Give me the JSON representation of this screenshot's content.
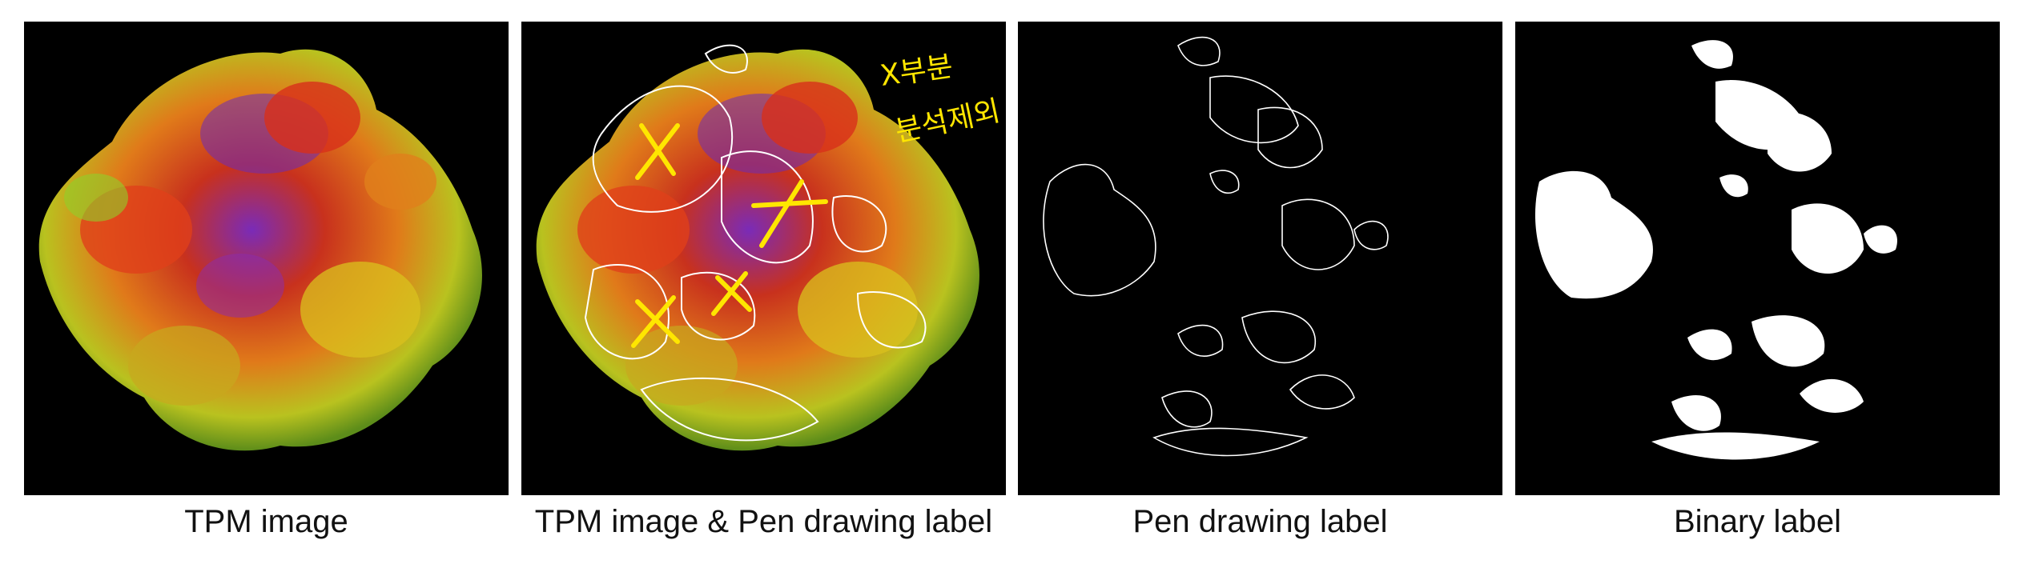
{
  "panels": [
    {
      "caption": "TPM image"
    },
    {
      "caption": "TPM image & Pen drawing label",
      "annotation": {
        "line1": "X부분",
        "line2": "분석제외"
      }
    },
    {
      "caption": "Pen drawing label"
    },
    {
      "caption": "Binary label"
    }
  ],
  "colors": {
    "background": "#000000",
    "tissue_red": "#d8301a",
    "tissue_orange": "#e0801c",
    "tissue_yellow": "#d9c21e",
    "tissue_green": "#8fd12a",
    "tissue_purple": "#6b2bb8",
    "pen_line": "#ffffff",
    "annotation_mark": "#ffe600",
    "label_fill": "#ffffff"
  }
}
